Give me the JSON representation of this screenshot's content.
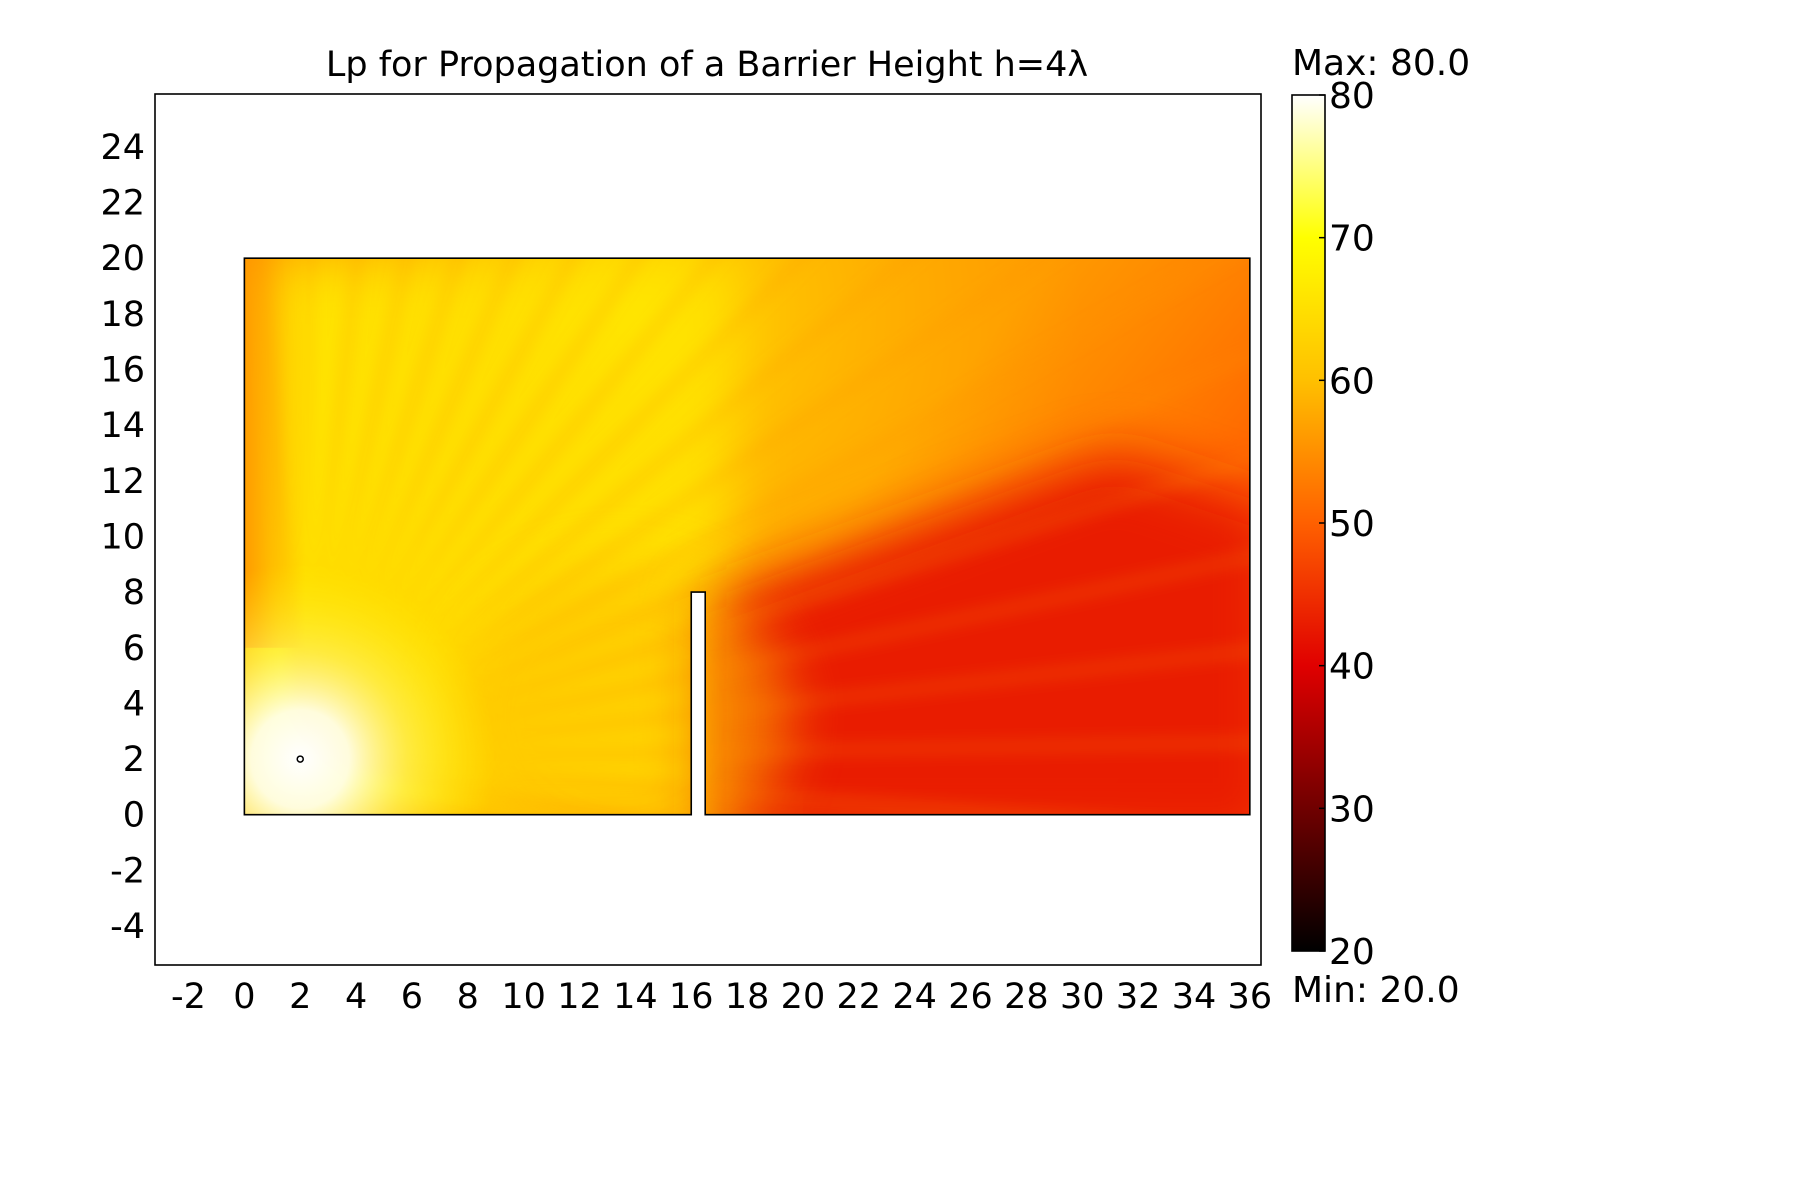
{
  "chart_data": {
    "type": "heatmap",
    "title": "Lp for Propagation of a Barrier Height h=4λ",
    "xlabel": "",
    "ylabel": "",
    "xlim": [
      -3.2,
      36.4
    ],
    "ylim": [
      -5.4,
      25.9
    ],
    "x_ticks": [
      -2,
      0,
      2,
      4,
      6,
      8,
      10,
      12,
      14,
      16,
      18,
      20,
      22,
      24,
      26,
      28,
      30,
      32,
      34,
      36
    ],
    "y_ticks": [
      -4,
      -2,
      0,
      2,
      4,
      6,
      8,
      10,
      12,
      14,
      16,
      18,
      20,
      22,
      24
    ],
    "grid": false,
    "colormap": "heat",
    "colorbar": {
      "min": 20,
      "max": 80,
      "ticks": [
        20,
        30,
        40,
        50,
        60,
        70,
        80
      ],
      "max_label": "Max: 80.0",
      "min_label": "Min: 20.0",
      "colors": [
        "#000000",
        "#700000",
        "#e00000",
        "#ff6000",
        "#ffc000",
        "#ffff00",
        "#ffffff"
      ]
    },
    "domain": {
      "x_range": [
        0,
        36
      ],
      "y_range": [
        0,
        20
      ],
      "barrier": {
        "x_range": [
          16,
          16.5
        ],
        "y_range": [
          0,
          8
        ]
      }
    },
    "source": {
      "x": 2,
      "y": 2
    },
    "field": {
      "shadow_level": 43,
      "approx_levels": {
        "near_source": 80,
        "left_wall_fringes": 55,
        "upper_left_region": 67,
        "source_side_near_barrier": 60,
        "upper_right_region": 56,
        "right_edge_middle": 45,
        "behind_barrier_shadow": 43
      }
    }
  }
}
